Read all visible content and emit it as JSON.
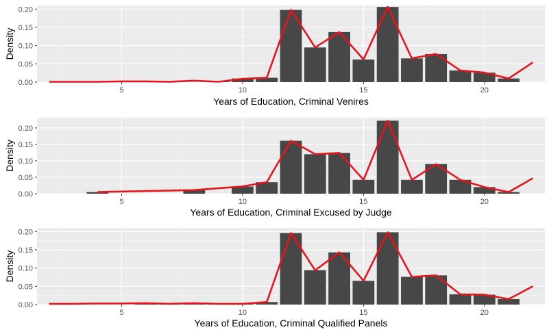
{
  "chart_data": [
    {
      "type": "bar",
      "xlabel": "Years of Education, Criminal Venires",
      "ylabel": "Density",
      "xlim": [
        1.5,
        22.5
      ],
      "ylim": [
        0,
        0.21
      ],
      "x_ticks": [
        5,
        10,
        15,
        20
      ],
      "y_ticks": [
        0,
        0.05,
        0.1,
        0.15,
        0.2
      ],
      "y_tick_labels": [
        "0.00",
        "0.05",
        "0.10",
        "0.15",
        "0.20"
      ],
      "grid": true,
      "bars": {
        "x": [
          9,
          10,
          11,
          12,
          13,
          14,
          15,
          16,
          17,
          18,
          19,
          20,
          21
        ],
        "values": [
          0.002,
          0.01,
          0.012,
          0.198,
          0.095,
          0.137,
          0.062,
          0.206,
          0.065,
          0.077,
          0.032,
          0.026,
          0.01
        ]
      },
      "line": {
        "color": "#e8141b",
        "x": [
          2,
          3,
          4,
          5,
          6,
          7,
          8,
          9,
          10,
          11,
          12,
          13,
          14,
          15,
          16,
          17,
          18,
          19,
          20,
          21,
          22
        ],
        "y": [
          0.001,
          0.001,
          0.001,
          0.002,
          0.002,
          0.001,
          0.004,
          0.001,
          0.009,
          0.012,
          0.198,
          0.095,
          0.137,
          0.062,
          0.206,
          0.065,
          0.077,
          0.032,
          0.026,
          0.01,
          0.054
        ]
      }
    },
    {
      "type": "bar",
      "xlabel": "Years of Education, Criminal Excused by Judge",
      "ylabel": "Density",
      "xlim": [
        1.5,
        22.5
      ],
      "ylim": [
        0,
        0.231
      ],
      "x_ticks": [
        5,
        10,
        15,
        20
      ],
      "y_ticks": [
        0,
        0.05,
        0.1,
        0.15,
        0.2
      ],
      "y_tick_labels": [
        "0.00",
        "0.05",
        "0.10",
        "0.15",
        "0.20"
      ],
      "grid": true,
      "bars": {
        "x": [
          4,
          8,
          10,
          11,
          12,
          13,
          14,
          15,
          16,
          17,
          18,
          19,
          20,
          21
        ],
        "values": [
          0.005,
          0.011,
          0.022,
          0.035,
          0.161,
          0.12,
          0.124,
          0.042,
          0.222,
          0.042,
          0.09,
          0.042,
          0.02,
          0.005
        ]
      },
      "line": {
        "color": "#e8141b",
        "x": [
          4,
          8,
          10,
          11,
          12,
          13,
          14,
          15,
          16,
          17,
          18,
          19,
          20,
          21,
          22
        ],
        "y": [
          0.005,
          0.011,
          0.022,
          0.035,
          0.161,
          0.12,
          0.124,
          0.042,
          0.222,
          0.042,
          0.09,
          0.042,
          0.02,
          0.005,
          0.047
        ]
      }
    },
    {
      "type": "bar",
      "xlabel": "Years of Education, Criminal Qualified Panels",
      "ylabel": "Density",
      "xlim": [
        1.5,
        22.5
      ],
      "ylim": [
        0,
        0.21
      ],
      "x_ticks": [
        5,
        10,
        15,
        20
      ],
      "y_ticks": [
        0,
        0.05,
        0.1,
        0.15,
        0.2
      ],
      "y_tick_labels": [
        "0.00",
        "0.05",
        "0.10",
        "0.15",
        "0.20"
      ],
      "grid": true,
      "bars": {
        "x": [
          6,
          7,
          8,
          9,
          10,
          11,
          12,
          13,
          14,
          15,
          16,
          17,
          18,
          19,
          20,
          21
        ],
        "values": [
          0.002,
          0.001,
          0.002,
          0.001,
          0.002,
          0.007,
          0.196,
          0.094,
          0.143,
          0.065,
          0.198,
          0.076,
          0.08,
          0.028,
          0.027,
          0.015
        ]
      },
      "line": {
        "color": "#e8141b",
        "x": [
          2,
          3,
          4,
          5,
          6,
          7,
          8,
          9,
          10,
          11,
          12,
          13,
          14,
          15,
          16,
          17,
          18,
          19,
          20,
          21,
          22
        ],
        "y": [
          0.002,
          0.002,
          0.003,
          0.003,
          0.004,
          0.002,
          0.004,
          0.002,
          0.002,
          0.007,
          0.196,
          0.094,
          0.143,
          0.065,
          0.198,
          0.076,
          0.08,
          0.028,
          0.027,
          0.015,
          0.05
        ]
      }
    }
  ]
}
